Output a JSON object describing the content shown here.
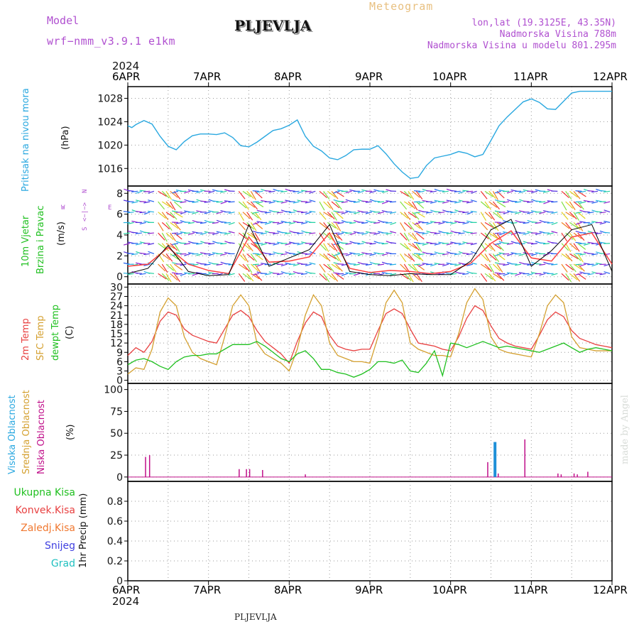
{
  "header": {
    "model_label": "Model",
    "model_name": "wrf−nmm_v3.9.1  e1km",
    "title": "PLJEVLJA",
    "meteogram": "Meteogram",
    "lonlat": "lon,lat (19.3125E, 43.35N)",
    "altitude": "Nadmorska Visina 788m",
    "model_altitude": "Nadmorska Visina u modelu 801.295m"
  },
  "axis": {
    "year": "2024",
    "dates": [
      "6APR",
      "7APR",
      "8APR",
      "9APR",
      "10APR",
      "11APR",
      "12APR"
    ]
  },
  "footer": {
    "station": "PLJEVLJA"
  },
  "watermark": "made by Angel",
  "colors": {
    "pressure": "#2aa8e0",
    "wind_speed": "#ff4040",
    "wind_gust": "#000000",
    "temp_2m": "#e84040",
    "temp_sfc": "#d4a030",
    "dewpoint": "#20c020",
    "cloud_high": "#1e90d8",
    "cloud_mid": "#d4a030",
    "cloud_low": "#c0108a"
  },
  "panels": {
    "pressure": {
      "label": "Pritisak na nivou mora",
      "unit": "(hPa)"
    },
    "wind": {
      "label1": "10m Vjetar",
      "label2": "Brzina i Pravac",
      "unit": "(m/s)",
      "compass_n": "N",
      "compass_s": "S",
      "compass_w": "W",
      "compass_e": "E",
      "compass_arrows": "<−|−>"
    },
    "temp": {
      "label1": "2m Temp",
      "label2": "SFC Temp",
      "label3": "dewpt Temp",
      "unit": "(C)"
    },
    "cloud": {
      "label1": "Visoka Oblacnost",
      "label2": "Srednja Oblacnost",
      "label3": "Niska Oblacnost",
      "unit": "(%)"
    },
    "precip": {
      "label": "1hr Precip (mm)",
      "legend": [
        "Ukupna Kisa",
        "Konvek.Kisa",
        "Zaledj.Kisa",
        "Snijeg",
        "Grad"
      ],
      "legend_colors": [
        "#20c020",
        "#e84040",
        "#f07830",
        "#4040e0",
        "#20c0c0"
      ]
    }
  },
  "chart_data": [
    {
      "type": "line",
      "title": "",
      "ylabel": "(hPa)",
      "ylim": [
        1013,
        1030
      ],
      "yticks": [
        1016,
        1020,
        1024,
        1028
      ],
      "x_days": [
        0,
        0.05,
        0.1,
        0.2,
        0.3,
        0.4,
        0.5,
        0.6,
        0.7,
        0.8,
        0.9,
        1.0,
        1.1,
        1.2,
        1.3,
        1.4,
        1.5,
        1.6,
        1.7,
        1.8,
        1.9,
        2.0,
        2.1,
        2.2,
        2.3,
        2.4,
        2.5,
        2.6,
        2.7,
        2.8,
        2.9,
        3.0,
        3.1,
        3.2,
        3.3,
        3.4,
        3.5,
        3.6,
        3.7,
        3.8,
        3.9,
        4.0,
        4.1,
        4.2,
        4.3,
        4.4,
        4.5,
        4.6,
        4.7,
        4.8,
        4.9,
        5.0,
        5.1,
        5.2,
        5.3,
        5.4,
        5.5,
        5.6,
        5.7,
        5.8,
        5.9,
        6.0
      ],
      "series": [
        {
          "values": [
            1023.3,
            1023.0,
            1023.5,
            1024.2,
            1023.6,
            1021.5,
            1019.8,
            1019.2,
            1020.6,
            1021.6,
            1021.9,
            1021.9,
            1021.8,
            1022.1,
            1021.3,
            1019.9,
            1019.7,
            1020.5,
            1021.5,
            1022.5,
            1022.8,
            1023.4,
            1024.3,
            1021.5,
            1019.8,
            1019.0,
            1017.8,
            1017.5,
            1018.2,
            1019.2,
            1019.3,
            1019.3,
            1019.9,
            1018.5,
            1016.8,
            1015.4,
            1014.3,
            1014.5,
            1016.5,
            1017.8,
            1018.1,
            1018.4,
            1018.9,
            1018.6,
            1018.0,
            1018.4,
            1020.8,
            1023.3,
            1024.8,
            1026.1,
            1027.4,
            1027.9,
            1027.3,
            1026.2,
            1026.1,
            1027.5,
            1028.9,
            1029.2,
            1029.2,
            1029.2,
            1029.2,
            1029.2
          ]
        }
      ]
    },
    {
      "type": "line",
      "title": "",
      "ylabel": "(m/s)",
      "ylim": [
        -0.7,
        8.7
      ],
      "yticks": [
        0,
        2,
        4,
        6,
        8
      ],
      "x_days": [
        0,
        0.25,
        0.5,
        0.75,
        1.0,
        1.25,
        1.5,
        1.75,
        2.0,
        2.25,
        2.5,
        2.75,
        3.0,
        3.25,
        3.5,
        3.75,
        4.0,
        4.25,
        4.5,
        4.75,
        5.0,
        5.25,
        5.5,
        5.75,
        6.0
      ],
      "series": [
        {
          "name": "wind speed",
          "values": [
            1.0,
            1.2,
            2.8,
            1.2,
            0.6,
            0.3,
            3.8,
            1.4,
            1.5,
            1.9,
            4.2,
            0.8,
            0.4,
            0.6,
            0.5,
            0.3,
            0.5,
            1.3,
            3.2,
            4.4,
            1.8,
            1.5,
            3.8,
            4.2,
            1.2
          ]
        },
        {
          "name": "gust",
          "values": [
            0.3,
            0.8,
            3.0,
            0.5,
            0.1,
            0.2,
            5.0,
            1.0,
            1.8,
            2.6,
            5.0,
            0.5,
            0.2,
            0.1,
            0.3,
            0.2,
            0.2,
            1.5,
            4.5,
            5.5,
            1.0,
            2.5,
            4.5,
            5.0,
            0.5
          ]
        }
      ]
    },
    {
      "type": "line",
      "title": "",
      "ylabel": "(C)",
      "ylim": [
        -1,
        31
      ],
      "yticks": [
        0,
        3,
        6,
        9,
        12,
        15,
        18,
        21,
        24,
        27,
        30
      ],
      "x_days": [
        0,
        0.1,
        0.2,
        0.3,
        0.4,
        0.5,
        0.6,
        0.7,
        0.8,
        0.9,
        1.0,
        1.1,
        1.2,
        1.3,
        1.4,
        1.5,
        1.6,
        1.7,
        1.8,
        1.9,
        2.0,
        2.1,
        2.2,
        2.3,
        2.4,
        2.5,
        2.6,
        2.7,
        2.8,
        2.9,
        3.0,
        3.1,
        3.2,
        3.3,
        3.4,
        3.5,
        3.6,
        3.7,
        3.8,
        3.9,
        4.0,
        4.1,
        4.2,
        4.3,
        4.4,
        4.5,
        4.6,
        4.7,
        4.8,
        4.9,
        5.0,
        5.1,
        5.2,
        5.3,
        5.4,
        5.5,
        5.6,
        5.7,
        5.8,
        5.9,
        6.0
      ],
      "series": [
        {
          "name": "2m Temp",
          "values": [
            8.0,
            10.5,
            9.0,
            12.5,
            19.0,
            22.0,
            21.0,
            16.5,
            14.5,
            13.5,
            12.5,
            12.0,
            16.5,
            21.0,
            22.5,
            20.5,
            16.0,
            12.5,
            10.5,
            8.5,
            5.5,
            12.5,
            18.5,
            22.0,
            20.5,
            14.5,
            11.0,
            10.0,
            9.5,
            10.0,
            10.0,
            16.0,
            21.5,
            23.0,
            21.5,
            16.5,
            12.0,
            11.5,
            11.0,
            10.0,
            9.5,
            14.0,
            20.0,
            24.0,
            22.5,
            17.5,
            13.5,
            12.0,
            11.0,
            10.5,
            10.0,
            14.5,
            19.5,
            22.0,
            20.5,
            16.0,
            13.5,
            12.5,
            11.5,
            11.0,
            10.5
          ]
        },
        {
          "name": "SFC Temp",
          "values": [
            2.0,
            4.0,
            3.5,
            10.0,
            22.0,
            26.5,
            24.0,
            14.0,
            9.0,
            7.0,
            6.0,
            5.0,
            14.0,
            24.0,
            27.5,
            24.0,
            12.0,
            8.5,
            7.0,
            5.5,
            3.0,
            10.0,
            21.0,
            27.5,
            24.0,
            12.0,
            8.0,
            7.0,
            6.0,
            6.0,
            5.5,
            14.0,
            25.0,
            29.0,
            25.0,
            12.0,
            10.0,
            9.0,
            8.0,
            8.0,
            7.5,
            15.0,
            25.0,
            29.5,
            26.0,
            14.0,
            10.0,
            9.0,
            8.5,
            8.0,
            7.5,
            15.0,
            24.0,
            27.5,
            25.0,
            14.0,
            10.5,
            10.0,
            9.5,
            9.5,
            9.5
          ]
        },
        {
          "name": "dewpt Temp",
          "values": [
            5.0,
            6.5,
            7.0,
            6.0,
            4.5,
            3.5,
            6.0,
            7.5,
            8.0,
            8.0,
            8.5,
            8.5,
            10.0,
            11.5,
            11.5,
            11.5,
            12.5,
            11.0,
            9.0,
            7.0,
            6.0,
            8.5,
            9.5,
            7.0,
            3.5,
            3.5,
            2.5,
            2.0,
            1.0,
            2.0,
            3.5,
            6.0,
            6.0,
            5.5,
            6.5,
            3.0,
            2.5,
            5.5,
            9.5,
            1.5,
            12.0,
            11.5,
            10.5,
            11.5,
            12.5,
            11.5,
            10.5,
            11.0,
            10.5,
            10.0,
            9.5,
            9.0,
            10.0,
            11.0,
            12.0,
            10.5,
            9.0,
            10.0,
            10.5,
            10.0,
            9.5
          ]
        }
      ]
    },
    {
      "type": "bar",
      "title": "",
      "ylabel": "(%)",
      "ylim": [
        -5,
        107
      ],
      "yticks": [
        0,
        25,
        50,
        75,
        100
      ],
      "series": [
        {
          "name": "Visoka Oblacnost",
          "x_days": [
            4.55
          ],
          "values": [
            40
          ]
        },
        {
          "name": "Niska Oblacnost",
          "x_days": [
            0.22,
            0.27,
            1.38,
            1.47,
            1.51,
            1.67,
            2.2,
            4.46,
            4.59,
            4.92,
            5.33,
            5.37,
            5.53,
            5.57,
            5.7
          ],
          "values": [
            23,
            25,
            9,
            9,
            9,
            8,
            3,
            17,
            4,
            43,
            4,
            3,
            4,
            3,
            6
          ]
        }
      ]
    },
    {
      "type": "bar",
      "title": "",
      "ylabel": "1hr Precip (mm)",
      "ylim": [
        0,
        1
      ],
      "yticks": [
        0,
        0.2,
        0.4,
        0.6,
        0.8
      ],
      "series": []
    }
  ]
}
